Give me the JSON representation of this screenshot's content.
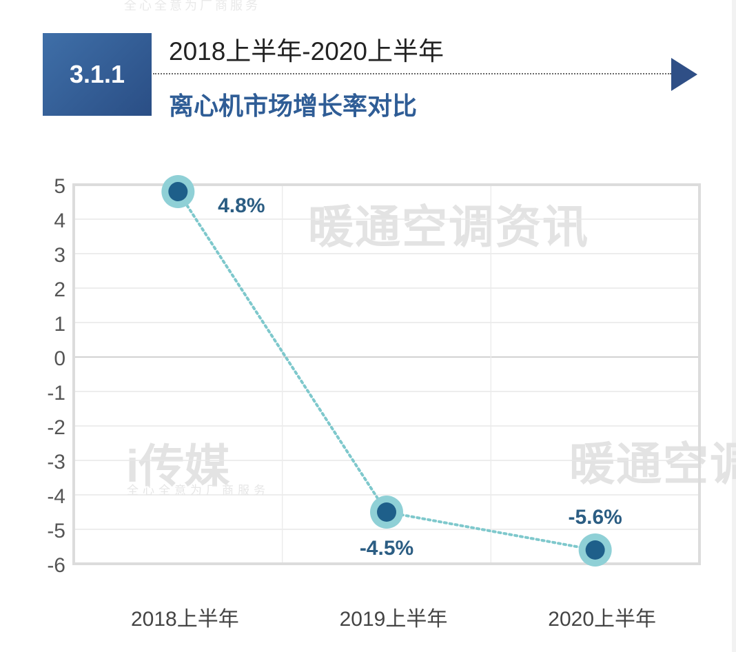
{
  "header": {
    "badge": "3.1.1",
    "title_line1": "2018上半年-2020上半年",
    "title_line2": "离心机市场增长率对比"
  },
  "watermarks": {
    "main": "暖通空调资讯",
    "bottom_right": "暖通空调",
    "media": "i传媒",
    "slogan": "全心全意为厂商服务"
  },
  "colors": {
    "line": "#7ec8cc",
    "marker_outer": "#8fd0d6",
    "marker_inner": "#1e5f8a",
    "label": "#2b5d83",
    "badge": "#3a65a0",
    "title_accent": "#2f5d96"
  },
  "chart_data": {
    "type": "line",
    "categories": [
      "2018上半年",
      "2019上半年",
      "2020上半年"
    ],
    "series": [
      {
        "values": [
          4.8,
          -4.5,
          -5.6
        ],
        "labels": [
          "4.8%",
          "-4.5%",
          "-5.6%"
        ]
      }
    ],
    "ylim": [
      -6,
      5
    ],
    "yticks": [
      5,
      4,
      3,
      2,
      1,
      0,
      -1,
      -2,
      -3,
      -4,
      -5,
      -6
    ],
    "xlabel": "",
    "ylabel": "",
    "grid": true,
    "legend": "none"
  }
}
